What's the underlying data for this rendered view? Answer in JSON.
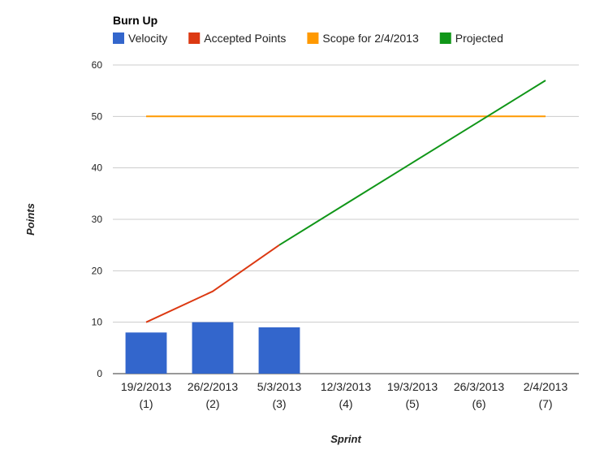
{
  "chart_data": {
    "type": "bar",
    "title": "Burn Up",
    "xlabel": "Sprint",
    "ylabel": "Points",
    "ylim": [
      0,
      60
    ],
    "yticks": [
      0,
      10,
      20,
      30,
      40,
      50,
      60
    ],
    "grid": true,
    "legend_position": "top",
    "categories": [
      {
        "date": "19/2/2013",
        "sprint": "(1)"
      },
      {
        "date": "26/2/2013",
        "sprint": "(2)"
      },
      {
        "date": "5/3/2013",
        "sprint": "(3)"
      },
      {
        "date": "12/3/2013",
        "sprint": "(4)"
      },
      {
        "date": "19/3/2013",
        "sprint": "(5)"
      },
      {
        "date": "26/3/2013",
        "sprint": "(6)"
      },
      {
        "date": "2/4/2013",
        "sprint": "(7)"
      }
    ],
    "series": [
      {
        "name": "Velocity",
        "type": "bar",
        "color": "#3366cc",
        "values": [
          8,
          10,
          9,
          null,
          null,
          null,
          null
        ]
      },
      {
        "name": "Accepted Points",
        "type": "line",
        "color": "#dc3912",
        "values": [
          10,
          16,
          25,
          null,
          null,
          null,
          null
        ]
      },
      {
        "name": "Scope for 2/4/2013",
        "type": "line",
        "color": "#ff9900",
        "values": [
          50,
          50,
          50,
          50,
          50,
          50,
          50
        ]
      },
      {
        "name": "Projected",
        "type": "line",
        "color": "#109618",
        "values": [
          null,
          null,
          25,
          33,
          41,
          49,
          57
        ]
      }
    ]
  }
}
